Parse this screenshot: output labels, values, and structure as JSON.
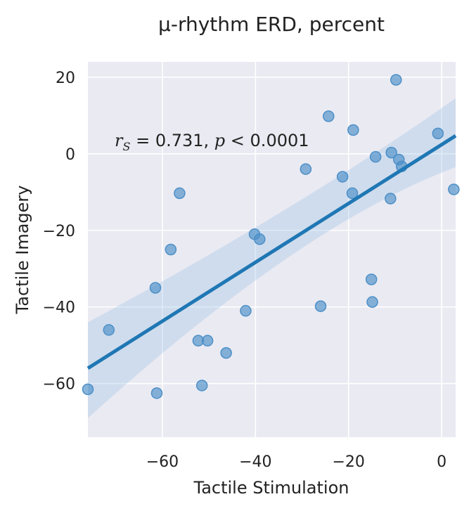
{
  "chart_data": {
    "type": "scatter",
    "title": "μ-rhythm ERD, percent",
    "xlabel": "Tactile Stimulation",
    "ylabel": "Tactile Imagery",
    "xlim": [
      -76,
      3
    ],
    "ylim": [
      -74,
      24
    ],
    "xticks": [
      -60,
      -40,
      -20,
      0
    ],
    "yticks": [
      20,
      0,
      -20,
      -40,
      -60
    ],
    "xtick_labels": [
      "−60",
      "−40",
      "−20",
      "0"
    ],
    "ytick_labels": [
      "20",
      "0",
      "−20",
      "−40",
      "−60"
    ],
    "grid": true,
    "annotation": {
      "r_symbol": "r",
      "r_subscript": "S",
      "r_value": " = 0.731, ",
      "p_symbol": "p",
      "p_value": " < 0.0001"
    },
    "points_color": "#4c8fc7",
    "line_color": "#1f77b4",
    "band_color": "#9ec3e6",
    "x": [
      -76,
      -71.5,
      -61.5,
      -61.2,
      -58.2,
      -56.3,
      -52.3,
      -51.5,
      -50.3,
      -46.3,
      -42.1,
      -40.2,
      -39.1,
      -29.2,
      -26,
      -24.3,
      -21.3,
      -19.2,
      -19,
      -15.1,
      -14.9,
      -14.2,
      -11,
      -10.8,
      -9.8,
      -9.2,
      -8.6,
      -0.8,
      2.6
    ],
    "y": [
      -61.5,
      -46,
      -35,
      -62.5,
      -25,
      -10.3,
      -48.8,
      -60.5,
      -48.8,
      -52,
      -41,
      -21,
      -22.3,
      -4,
      -39.8,
      9.8,
      -6,
      -10.3,
      6.2,
      -32.8,
      -38.7,
      -0.8,
      -11.7,
      0.3,
      19.3,
      -1.5,
      -3.3,
      5.3,
      -9.3
    ],
    "regression": {
      "x": [
        -76,
        3
      ],
      "y": [
        -56,
        4.7
      ],
      "ci_upper": [
        -44,
        14.5
      ],
      "ci_lower": [
        -69,
        -3.5
      ],
      "ci_center_x": -30,
      "ci_center_y": -20.8
    }
  }
}
